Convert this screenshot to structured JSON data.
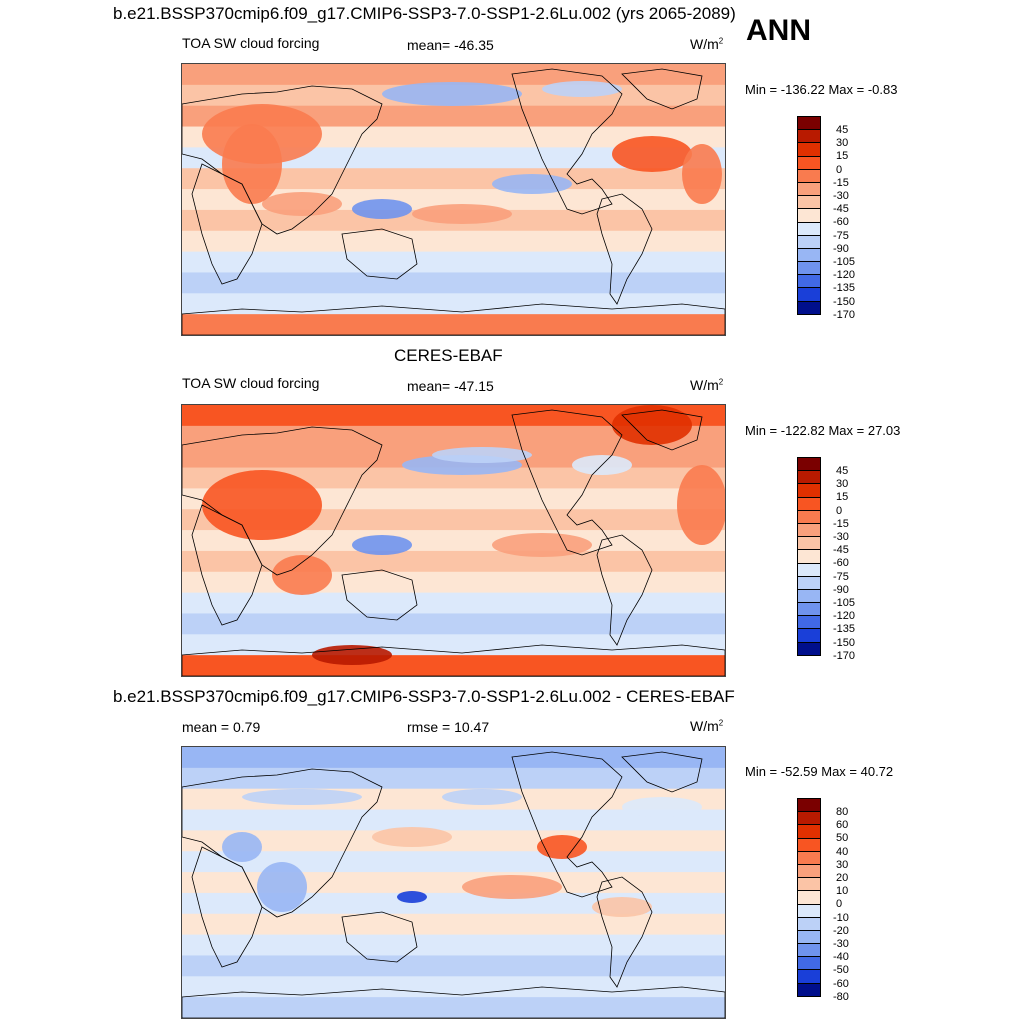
{
  "season": "ANN",
  "panels": [
    {
      "title": "b.e21.BSSP370cmip6.f09_g17.CMIP6-SSP3-7.0-SSP1-2.6Lu.002 (yrs 2065-2089)",
      "left_label": "TOA SW cloud forcing",
      "center_label": "mean= -46.35",
      "units": "W/m",
      "units_sup": "2",
      "minmax": "Min = -136.22 Max =  -0.83",
      "colorbar_labels": [
        "45",
        "30",
        "15",
        "0",
        "-15",
        "-30",
        "-45",
        "-60",
        "-75",
        "-90",
        "-105",
        "-120",
        "-135",
        "-150",
        "-170"
      ]
    },
    {
      "title": "CERES-EBAF",
      "left_label": "TOA SW cloud forcing",
      "center_label": "mean= -47.15",
      "units": "W/m",
      "units_sup": "2",
      "minmax": "Min = -122.82 Max =  27.03",
      "colorbar_labels": [
        "45",
        "30",
        "15",
        "0",
        "-15",
        "-30",
        "-45",
        "-60",
        "-75",
        "-90",
        "-105",
        "-120",
        "-135",
        "-150",
        "-170"
      ]
    },
    {
      "title": "b.e21.BSSP370cmip6.f09_g17.CMIP6-SSP3-7.0-SSP1-2.6Lu.002 - CERES-EBAF",
      "left_label": "mean =   0.79",
      "center_label": "rmse =  10.47",
      "units": "W/m",
      "units_sup": "2",
      "minmax": "Min = -52.59 Max =  40.72",
      "colorbar_labels": [
        "80",
        "60",
        "50",
        "40",
        "30",
        "20",
        "10",
        "0",
        "-10",
        "-20",
        "-30",
        "-40",
        "-50",
        "-60",
        "-80"
      ]
    }
  ],
  "colors": {
    "colorbar": [
      "#7a0000",
      "#b81a00",
      "#e03000",
      "#f85522",
      "#f97b4f",
      "#f9a07c",
      "#fbc4a6",
      "#fde6d4",
      "#dce9fb",
      "#bcd1f7",
      "#98b6f4",
      "#6f93ee",
      "#4169e6",
      "#1a3fd8",
      "#000f8c"
    ],
    "land_outline": "#000000",
    "frame": "#444444"
  }
}
